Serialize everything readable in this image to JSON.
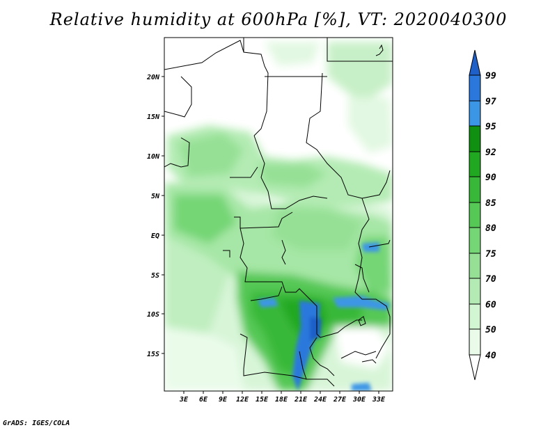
{
  "title": "Relative humidity at 600hPa [%], VT: 2020040300",
  "credit": "GrADS: IGES/COLA",
  "map": {
    "lat_labels": [
      "20N",
      "15N",
      "10N",
      "5N",
      "EQ",
      "5S",
      "10S",
      "15S"
    ],
    "lon_labels": [
      "3E",
      "6E",
      "9E",
      "12E",
      "15E",
      "18E",
      "21E",
      "24E",
      "27E",
      "30E",
      "33E"
    ]
  },
  "colorbar": {
    "levels": [
      "99",
      "97",
      "95",
      "92",
      "90",
      "85",
      "80",
      "75",
      "70",
      "60",
      "50",
      "40"
    ],
    "colors": [
      "#1f5fc8",
      "#2a78dc",
      "#3c96e6",
      "#109010",
      "#20a820",
      "#38b838",
      "#55c855",
      "#75d675",
      "#96e096",
      "#b4ebb4",
      "#d2f5d2",
      "#eafbea",
      "#ffffff"
    ]
  }
}
